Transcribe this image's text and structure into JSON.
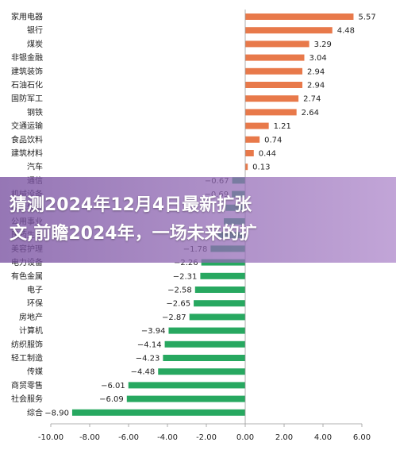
{
  "chart_data": {
    "type": "bar",
    "orientation": "horizontal",
    "title": "",
    "xlabel": "",
    "ylabel": "",
    "xlim": [
      -10,
      6
    ],
    "xticks": [
      "-10.00",
      "-8.00",
      "-6.00",
      "-4.00",
      "-2.00",
      "0.00",
      "2.00",
      "4.00",
      "6.00"
    ],
    "grid": false,
    "positive_color": "#E8794A",
    "negative_color": "#27A860",
    "categories": [
      "家用电器",
      "银行",
      "煤炭",
      "非银金融",
      "建筑装饰",
      "石油石化",
      "国防军工",
      "钢铁",
      "交通运输",
      "食品饮料",
      "建筑材料",
      "汽车",
      "通信",
      "机械设备",
      "农林牧渔",
      "公用事业",
      "医药生物",
      "美容护理",
      "电力设备",
      "有色金属",
      "电子",
      "环保",
      "房地产",
      "计算机",
      "纺织服饰",
      "轻工制造",
      "传媒",
      "商贸零售",
      "社会服务",
      "综合"
    ],
    "values": [
      5.57,
      4.48,
      3.29,
      3.04,
      2.94,
      2.94,
      2.74,
      2.64,
      1.21,
      0.74,
      0.44,
      0.13,
      -0.67,
      -0.69,
      -1.0,
      -1.1,
      -1.4,
      -1.78,
      -2.26,
      -2.31,
      -2.58,
      -2.65,
      -2.87,
      -3.94,
      -4.14,
      -4.23,
      -4.48,
      -6.01,
      -6.09,
      -8.9
    ],
    "value_labels": [
      "5.57",
      "4.48",
      "3.29",
      "3.04",
      "2.94",
      "2.94",
      "2.74",
      "2.64",
      "1.21",
      "0.74",
      "0.44",
      "0.13",
      "−0.67",
      "−0.69",
      "",
      "",
      "",
      "−1.78",
      "−2.26",
      "−2.31",
      "−2.58",
      "−2.65",
      "−2.87",
      "−3.94",
      "−4.14",
      "−4.23",
      "−4.48",
      "−6.01",
      "−6.09",
      "−8.90"
    ]
  },
  "overlay": {
    "line1": "猜测2024年12月4日最新扩张",
    "line2": "文,前瞻2024年，一场未来的扩"
  }
}
